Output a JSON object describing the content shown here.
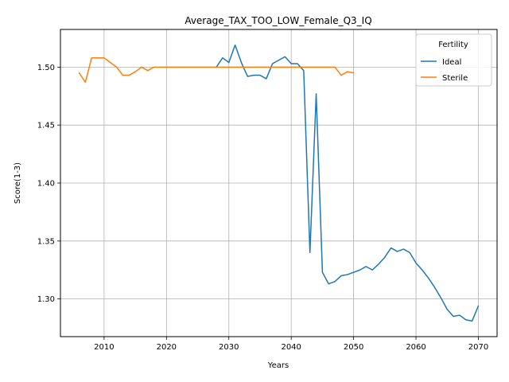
{
  "chart_data": {
    "type": "line",
    "title": "Average_TAX_TOO_LOW_Female_Q3_IQ",
    "xlabel": "Years",
    "ylabel": "Score(1-3)",
    "xlim": [
      2003,
      2073
    ],
    "ylim": [
      1.2675,
      1.5325
    ],
    "xticks": [
      2010,
      2020,
      2030,
      2040,
      2050,
      2060,
      2070
    ],
    "yticks": [
      1.3,
      1.35,
      1.4,
      1.45,
      1.5
    ],
    "grid": true,
    "legend": {
      "title": "Fertility",
      "placement": "top-right"
    },
    "series": [
      {
        "name": "Ideal",
        "color": "#1f77b4",
        "x": [
          2028,
          2029,
          2030,
          2031,
          2032,
          2033,
          2034,
          2035,
          2036,
          2037,
          2038,
          2039,
          2040,
          2041,
          2042,
          2043,
          2044,
          2045,
          2046,
          2047,
          2048,
          2049,
          2050,
          2051,
          2052,
          2053,
          2054,
          2055,
          2056,
          2057,
          2058,
          2059,
          2060,
          2061,
          2062,
          2063,
          2064,
          2065,
          2066,
          2067,
          2068,
          2069,
          2070
        ],
        "y": [
          1.5,
          1.508,
          1.504,
          1.519,
          1.504,
          1.492,
          1.493,
          1.493,
          1.49,
          1.503,
          1.506,
          1.509,
          1.503,
          1.503,
          1.497,
          1.34,
          1.477,
          1.323,
          1.313,
          1.315,
          1.32,
          1.321,
          1.323,
          1.325,
          1.328,
          1.325,
          1.33,
          1.336,
          1.344,
          1.341,
          1.343,
          1.34,
          1.331,
          1.325,
          1.318,
          1.31,
          1.301,
          1.291,
          1.285,
          1.286,
          1.282,
          1.281,
          1.294
        ]
      },
      {
        "name": "Sterile",
        "color": "#ff7f0e",
        "x": [
          2006,
          2007,
          2008,
          2009,
          2010,
          2011,
          2012,
          2013,
          2014,
          2015,
          2016,
          2017,
          2018,
          2019,
          2020,
          2021,
          2022,
          2023,
          2024,
          2025,
          2026,
          2027,
          2028,
          2029,
          2030,
          2031,
          2032,
          2033,
          2034,
          2035,
          2036,
          2037,
          2038,
          2039,
          2040,
          2041,
          2042,
          2043,
          2044,
          2045,
          2046,
          2047,
          2048,
          2049,
          2050
        ],
        "y": [
          1.495,
          1.487,
          1.508,
          1.508,
          1.508,
          1.504,
          1.5,
          1.493,
          1.493,
          1.496,
          1.5,
          1.497,
          1.5,
          1.5,
          1.5,
          1.5,
          1.5,
          1.5,
          1.5,
          1.5,
          1.5,
          1.5,
          1.5,
          1.5,
          1.5,
          1.5,
          1.5,
          1.5,
          1.5,
          1.5,
          1.5,
          1.5,
          1.5,
          1.5,
          1.5,
          1.5,
          1.5,
          1.5,
          1.5,
          1.5,
          1.5,
          1.5,
          1.493,
          1.496,
          1.495
        ]
      }
    ]
  }
}
